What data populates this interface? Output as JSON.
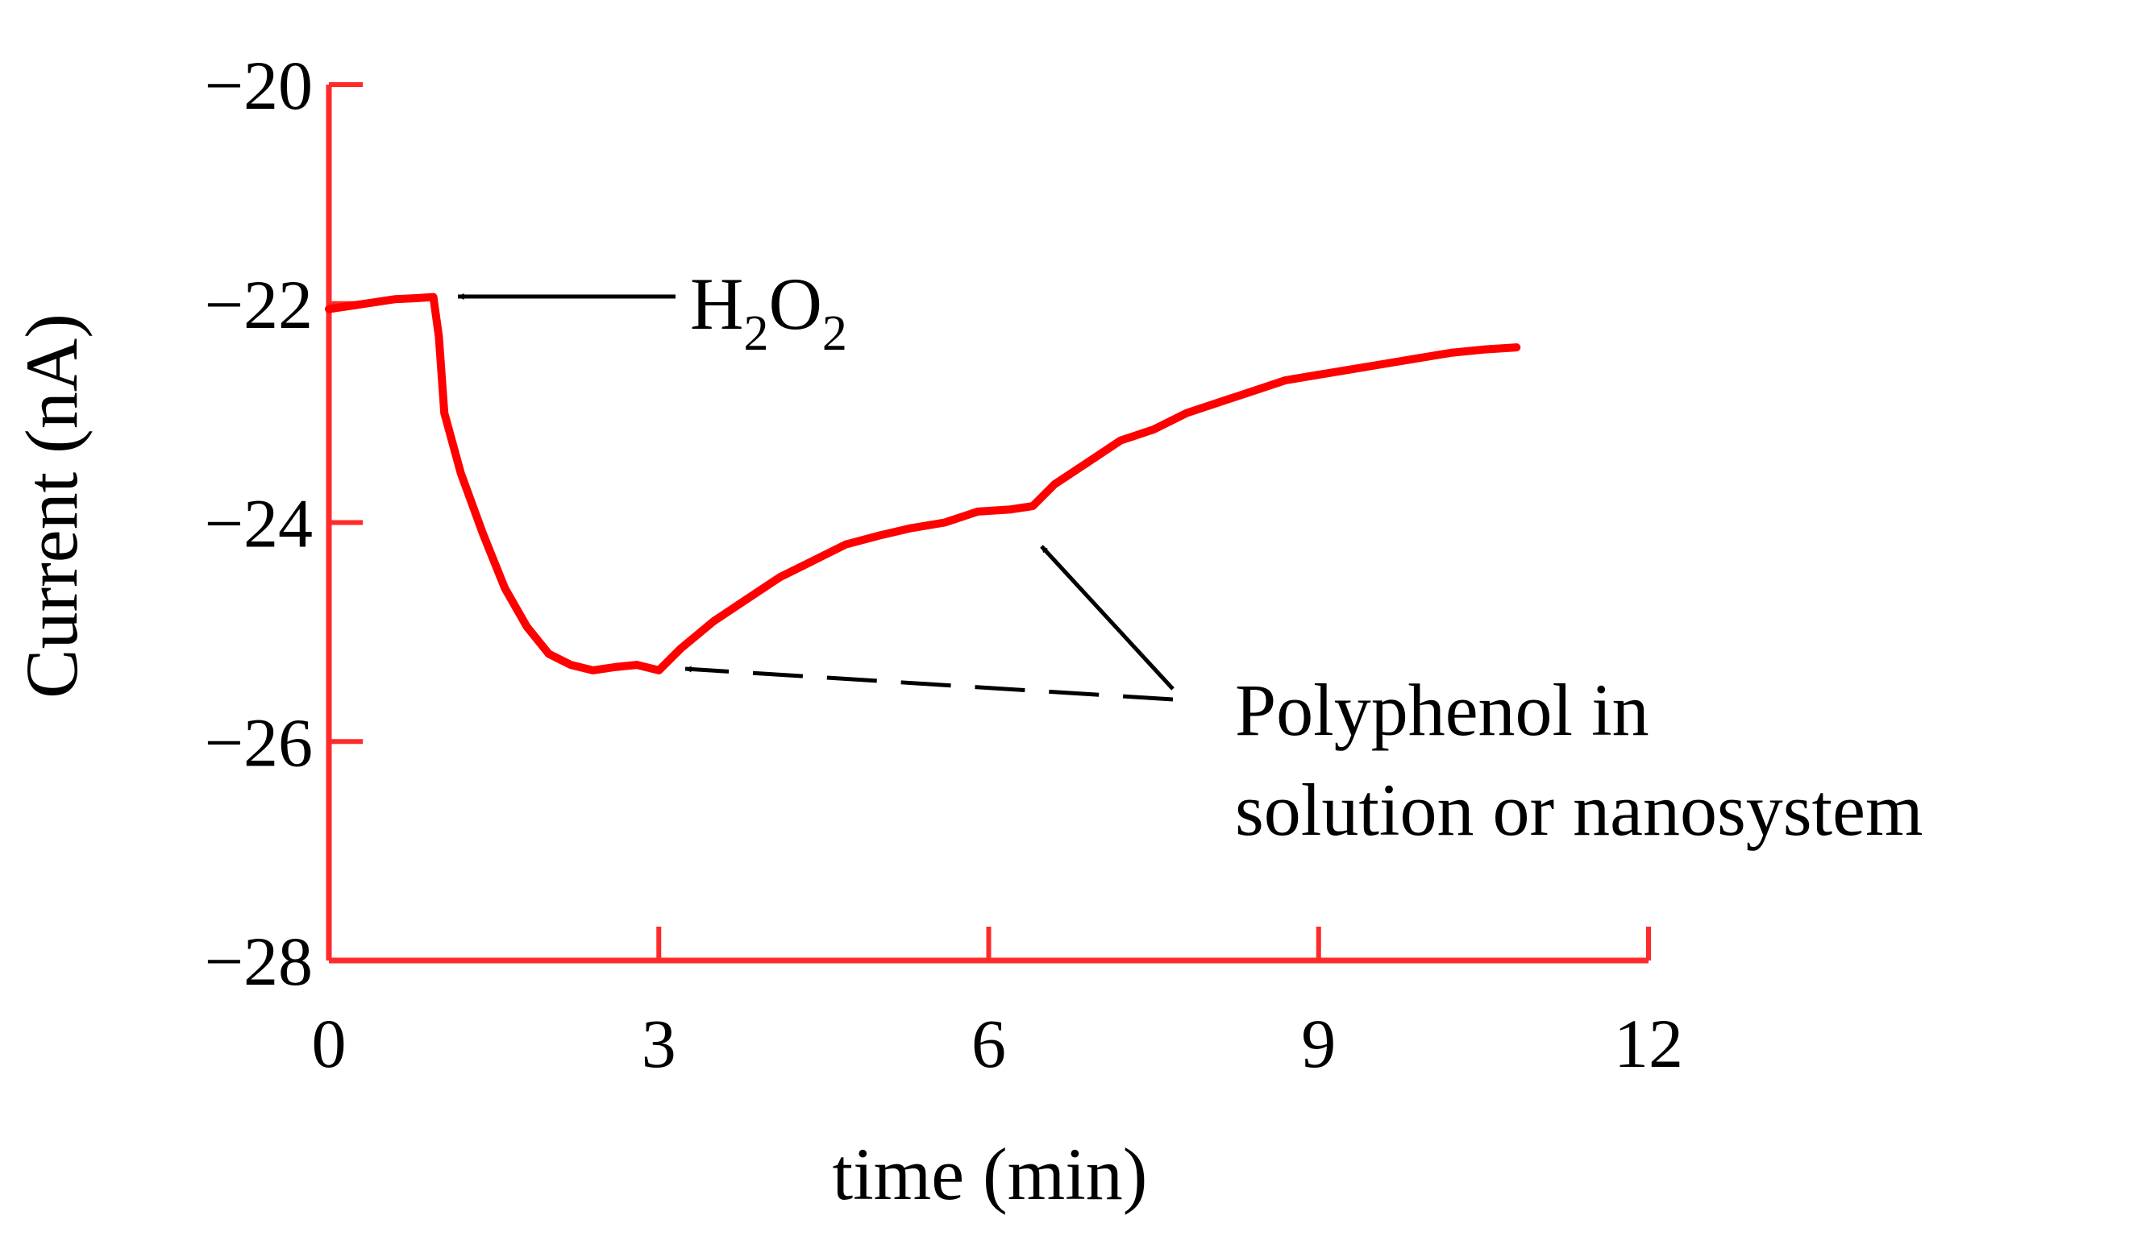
{
  "chart_data": {
    "type": "line",
    "title": "",
    "xlabel": "time (min)",
    "ylabel": "Current (nA)",
    "xlim": [
      0,
      12
    ],
    "ylim": [
      -28,
      -20
    ],
    "xticks": [
      0,
      3,
      6,
      9,
      12
    ],
    "yticks": [
      -20,
      -22,
      -24,
      -26,
      -28
    ],
    "xtick_labels": [
      "0",
      "3",
      "6",
      "9",
      "12"
    ],
    "ytick_labels": [
      "−20",
      "−22",
      "−24",
      "−26",
      "−28"
    ],
    "grid": false,
    "legend": "none",
    "colors": {
      "axes": "#ff2a2a",
      "series": "#ff0000",
      "annotation": "#000000"
    },
    "series": [
      {
        "x": [
          0,
          0.2,
          0.4,
          0.6,
          0.8,
          0.95,
          1.0,
          1.05,
          1.2,
          1.4,
          1.6,
          1.8,
          2.0,
          2.2,
          2.4,
          2.6,
          2.8,
          3.0,
          3.2,
          3.5,
          3.8,
          4.1,
          4.4,
          4.7,
          5.0,
          5.3,
          5.6,
          5.9,
          6.2,
          6.4,
          6.6,
          6.9,
          7.2,
          7.5,
          7.8,
          8.1,
          8.4,
          8.7,
          9.0,
          9.3,
          9.6,
          9.9,
          10.2,
          10.5,
          10.8
        ],
        "y": [
          -22.05,
          -22.02,
          -21.99,
          -21.96,
          -21.95,
          -21.94,
          -22.3,
          -23.0,
          -23.55,
          -24.1,
          -24.6,
          -24.95,
          -25.2,
          -25.3,
          -25.35,
          -25.32,
          -25.3,
          -25.35,
          -25.15,
          -24.9,
          -24.7,
          -24.5,
          -24.35,
          -24.2,
          -24.12,
          -24.05,
          -24.0,
          -23.9,
          -23.88,
          -23.85,
          -23.65,
          -23.45,
          -23.25,
          -23.15,
          -23.0,
          -22.9,
          -22.8,
          -22.7,
          -22.65,
          -22.6,
          -22.55,
          -22.5,
          -22.45,
          -22.42,
          -22.4
        ]
      }
    ],
    "annotations": [
      {
        "id": "h2o2",
        "text_main": "H",
        "sub1": "2",
        "text_mid": "O",
        "sub2": "2",
        "x": 1.0,
        "y": -21.94
      },
      {
        "id": "polyphenol",
        "line1": "Polyphenol in",
        "line2": "solution or nanosystem",
        "points": [
          {
            "x": 3.0,
            "y": -25.35
          },
          {
            "x": 6.5,
            "y": -23.85
          }
        ]
      }
    ]
  }
}
